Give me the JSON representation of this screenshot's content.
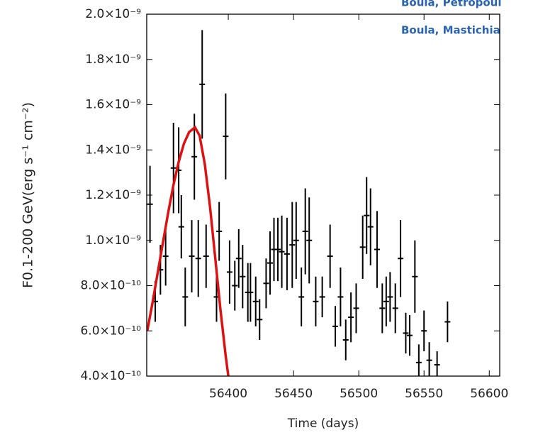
{
  "chart_data": {
    "type": "errorbar",
    "ylabel": "F0.1-200 GeV(erg s⁻¹ cm⁻²)",
    "xlabel": "Time (days)",
    "annotations": [
      "Boula, Petropoul",
      "Boula, Mastichia"
    ],
    "xlim": [
      56337.5,
      56608
    ],
    "xticks": [
      56400,
      56450,
      56500,
      56550,
      56600
    ],
    "ylim": [
      4e-10,
      2e-09
    ],
    "yticks": [
      {
        "value": 4e-10,
        "label": "4.0×10⁻¹⁰"
      },
      {
        "value": 6e-10,
        "label": "6.0×10⁻¹⁰"
      },
      {
        "value": 8e-10,
        "label": "8.0×10⁻¹⁰"
      },
      {
        "value": 1e-09,
        "label": "1.0×10⁻⁹"
      },
      {
        "value": 1.2e-09,
        "label": "1.2×10⁻⁹"
      },
      {
        "value": 1.4e-09,
        "label": "1.4×10⁻⁹"
      },
      {
        "value": 1.6e-09,
        "label": "1.6×10⁻⁹"
      },
      {
        "value": 1.8e-09,
        "label": "1.8×10⁻⁹"
      },
      {
        "value": 2e-09,
        "label": "2.0×10⁻⁹"
      }
    ],
    "series": [
      {
        "type": "errorbar",
        "color": "#000000",
        "x": [
          56340,
          56344,
          56348,
          56352,
          56358,
          56362,
          56364,
          56367,
          56372,
          56374,
          56377,
          56380,
          56383,
          56391,
          56393,
          56398,
          56401,
          56405,
          56408,
          56411,
          56415,
          56417,
          56421,
          56424,
          56429,
          56432,
          56435,
          56438,
          56441,
          56445,
          56449,
          56452,
          56456,
          56459,
          56462,
          56467,
          56472,
          56478,
          56482,
          56486,
          56490,
          56494,
          56498,
          56503,
          56506,
          56509,
          56514,
          56518,
          56521,
          56524,
          56528,
          56532,
          56536,
          56539,
          56543,
          56546,
          56550,
          56554,
          56560,
          56568
        ],
        "values": [
          1.16e-09,
          7.3e-10,
          8.7e-10,
          9.3e-10,
          1.32e-09,
          1.31e-09,
          1.06e-09,
          7.5e-10,
          9.3e-10,
          1.37e-09,
          9.2e-10,
          1.69e-09,
          9.3e-10,
          7.5e-10,
          1.04e-09,
          1.46e-09,
          8.6e-10,
          8e-10,
          9.2e-10,
          8.4e-10,
          7.7e-10,
          7.7e-10,
          7.3e-10,
          6.5e-10,
          8.1e-10,
          9e-10,
          9.6e-10,
          9.6e-10,
          9.5e-10,
          9.4e-10,
          9.8e-10,
          1e-09,
          7.5e-10,
          1.04e-09,
          1e-09,
          7.3e-10,
          7.5e-10,
          9.3e-10,
          6.2e-10,
          7.5e-10,
          5.6e-10,
          6.6e-10,
          7e-10,
          9.7e-10,
          1.11e-09,
          1.06e-09,
          9.6e-10,
          7e-10,
          7.3e-10,
          7.5e-10,
          7e-10,
          9.2e-10,
          5.9e-10,
          5.8e-10,
          8.4e-10,
          4.6e-10,
          6e-10,
          4.7e-10,
          4.5e-10,
          6.4e-10
        ],
        "errors": [
          1.7e-10,
          9e-11,
          1.1e-10,
          1.3e-10,
          2e-10,
          1.9e-10,
          1.4e-10,
          1.3e-10,
          1.6e-10,
          1.9e-10,
          1.7e-10,
          2.4e-10,
          1.4e-10,
          1.1e-10,
          1.3e-10,
          1.9e-10,
          1.4e-10,
          1.1e-10,
          1.3e-10,
          1.4e-10,
          1.3e-10,
          1.3e-10,
          1.1e-10,
          9e-11,
          1.1e-10,
          1.4e-10,
          1.4e-10,
          1.4e-10,
          1.6e-10,
          1.6e-10,
          1.9e-10,
          1.7e-10,
          1.3e-10,
          1.9e-10,
          1.9e-10,
          1.1e-10,
          9e-11,
          1.4e-10,
          9e-11,
          1.3e-10,
          9e-11,
          1.1e-10,
          1.1e-10,
          1.4e-10,
          1.7e-10,
          1.7e-10,
          1.7e-10,
          1.1e-10,
          1.1e-10,
          1.1e-10,
          1.1e-10,
          1.7e-10,
          9e-11,
          9e-11,
          1.6e-10,
          8e-11,
          9e-11,
          8e-11,
          6e-11,
          9e-11
        ]
      },
      {
        "type": "line",
        "color": "#dd1111",
        "x": [
          56338,
          56342,
          56346,
          56350,
          56354,
          56358,
          56362,
          56366,
          56370,
          56374.5,
          56378,
          56382,
          56386,
          56390,
          56394,
          56398,
          56400
        ],
        "values": [
          6.01e-10,
          7.27e-10,
          8.59e-10,
          9.93e-10,
          1.125e-09,
          1.245e-09,
          1.347e-09,
          1.428e-09,
          1.479e-09,
          1.5e-09,
          1.463e-09,
          1.338e-09,
          1.148e-09,
          9.21e-10,
          6.94e-10,
          4.89e-10,
          4.01e-10
        ]
      }
    ]
  }
}
